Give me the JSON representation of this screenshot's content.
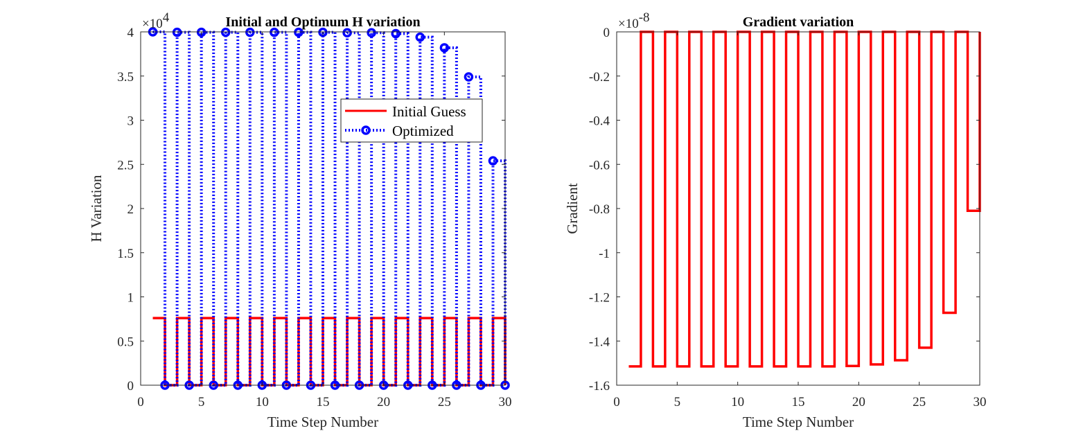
{
  "chart_data": [
    {
      "type": "line",
      "title": "Initial and Optimum H variation",
      "xlabel": "Time Step Number",
      "ylabel": "H Variation",
      "exponent_label": {
        "base": "×10",
        "power": "4"
      },
      "xlim": [
        0,
        30
      ],
      "ylim": [
        0,
        40000
      ],
      "x_ticks": [
        0,
        5,
        10,
        15,
        20,
        25,
        30
      ],
      "x_tick_labels": [
        "0",
        "5",
        "10",
        "15",
        "20",
        "25",
        "30"
      ],
      "y_ticks": [
        0,
        5000,
        10000,
        15000,
        20000,
        25000,
        30000,
        35000,
        40000
      ],
      "y_tick_labels": [
        "0",
        "0.5",
        "1",
        "1.5",
        "2",
        "2.5",
        "3",
        "3.5",
        "4"
      ],
      "grid": false,
      "legend_position": "upper-right (inside)",
      "x": [
        1,
        2,
        3,
        4,
        5,
        6,
        7,
        8,
        9,
        10,
        11,
        12,
        13,
        14,
        15,
        16,
        17,
        18,
        19,
        20,
        21,
        22,
        23,
        24,
        25,
        26,
        27,
        28,
        29,
        30
      ],
      "series": [
        {
          "name": "Initial Guess",
          "color": "#ff0000",
          "style": "solid",
          "marker": "none",
          "draw": "stairs",
          "values": [
            7600,
            0,
            7600,
            0,
            7600,
            0,
            7600,
            0,
            7600,
            0,
            7600,
            0,
            7600,
            0,
            7600,
            0,
            7600,
            0,
            7600,
            0,
            7600,
            0,
            7600,
            0,
            7600,
            0,
            7600,
            0,
            7600,
            0
          ]
        },
        {
          "name": "Optimized",
          "color": "#0000ff",
          "style": "dotted",
          "marker": "circle",
          "draw": "stairs",
          "values": [
            40000,
            0,
            39950,
            0,
            39950,
            0,
            39950,
            0,
            39950,
            0,
            39950,
            0,
            39950,
            0,
            39950,
            0,
            39900,
            0,
            39900,
            0,
            39800,
            0,
            39400,
            0,
            38200,
            0,
            34900,
            0,
            25400,
            0
          ]
        }
      ]
    },
    {
      "type": "line",
      "title": "Gradient variation",
      "xlabel": "Time Step Number",
      "ylabel": "Gradient",
      "exponent_label": {
        "base": "×10",
        "power": "-8"
      },
      "xlim": [
        0,
        30
      ],
      "ylim": [
        -1.6e-08,
        0
      ],
      "x_ticks": [
        0,
        5,
        10,
        15,
        20,
        25,
        30
      ],
      "x_tick_labels": [
        "0",
        "5",
        "10",
        "15",
        "20",
        "25",
        "30"
      ],
      "y_ticks": [
        -1.6e-08,
        -1.4e-08,
        -1.2e-08,
        -1e-08,
        -8e-09,
        -6e-09,
        -4e-09,
        -2e-09,
        0
      ],
      "y_tick_labels": [
        "-1.6",
        "-1.4",
        "-1.2",
        "-1",
        "-0.8",
        "-0.6",
        "-0.4",
        "-0.2",
        "0"
      ],
      "grid": false,
      "x": [
        1,
        2,
        3,
        4,
        5,
        6,
        7,
        8,
        9,
        10,
        11,
        12,
        13,
        14,
        15,
        16,
        17,
        18,
        19,
        20,
        21,
        22,
        23,
        24,
        25,
        26,
        27,
        28,
        29,
        30
      ],
      "series": [
        {
          "color": "#ff0000",
          "style": "solid",
          "marker": "none",
          "draw": "stairs",
          "values": [
            -1.515e-08,
            0,
            -1.515e-08,
            0,
            -1.515e-08,
            0,
            -1.515e-08,
            0,
            -1.515e-08,
            0,
            -1.515e-08,
            0,
            -1.515e-08,
            0,
            -1.515e-08,
            0,
            -1.515e-08,
            0,
            -1.513e-08,
            0,
            -1.506e-08,
            0,
            -1.487e-08,
            0,
            -1.43e-08,
            0,
            -1.272e-08,
            0,
            -8.1e-09,
            0
          ]
        }
      ]
    }
  ]
}
